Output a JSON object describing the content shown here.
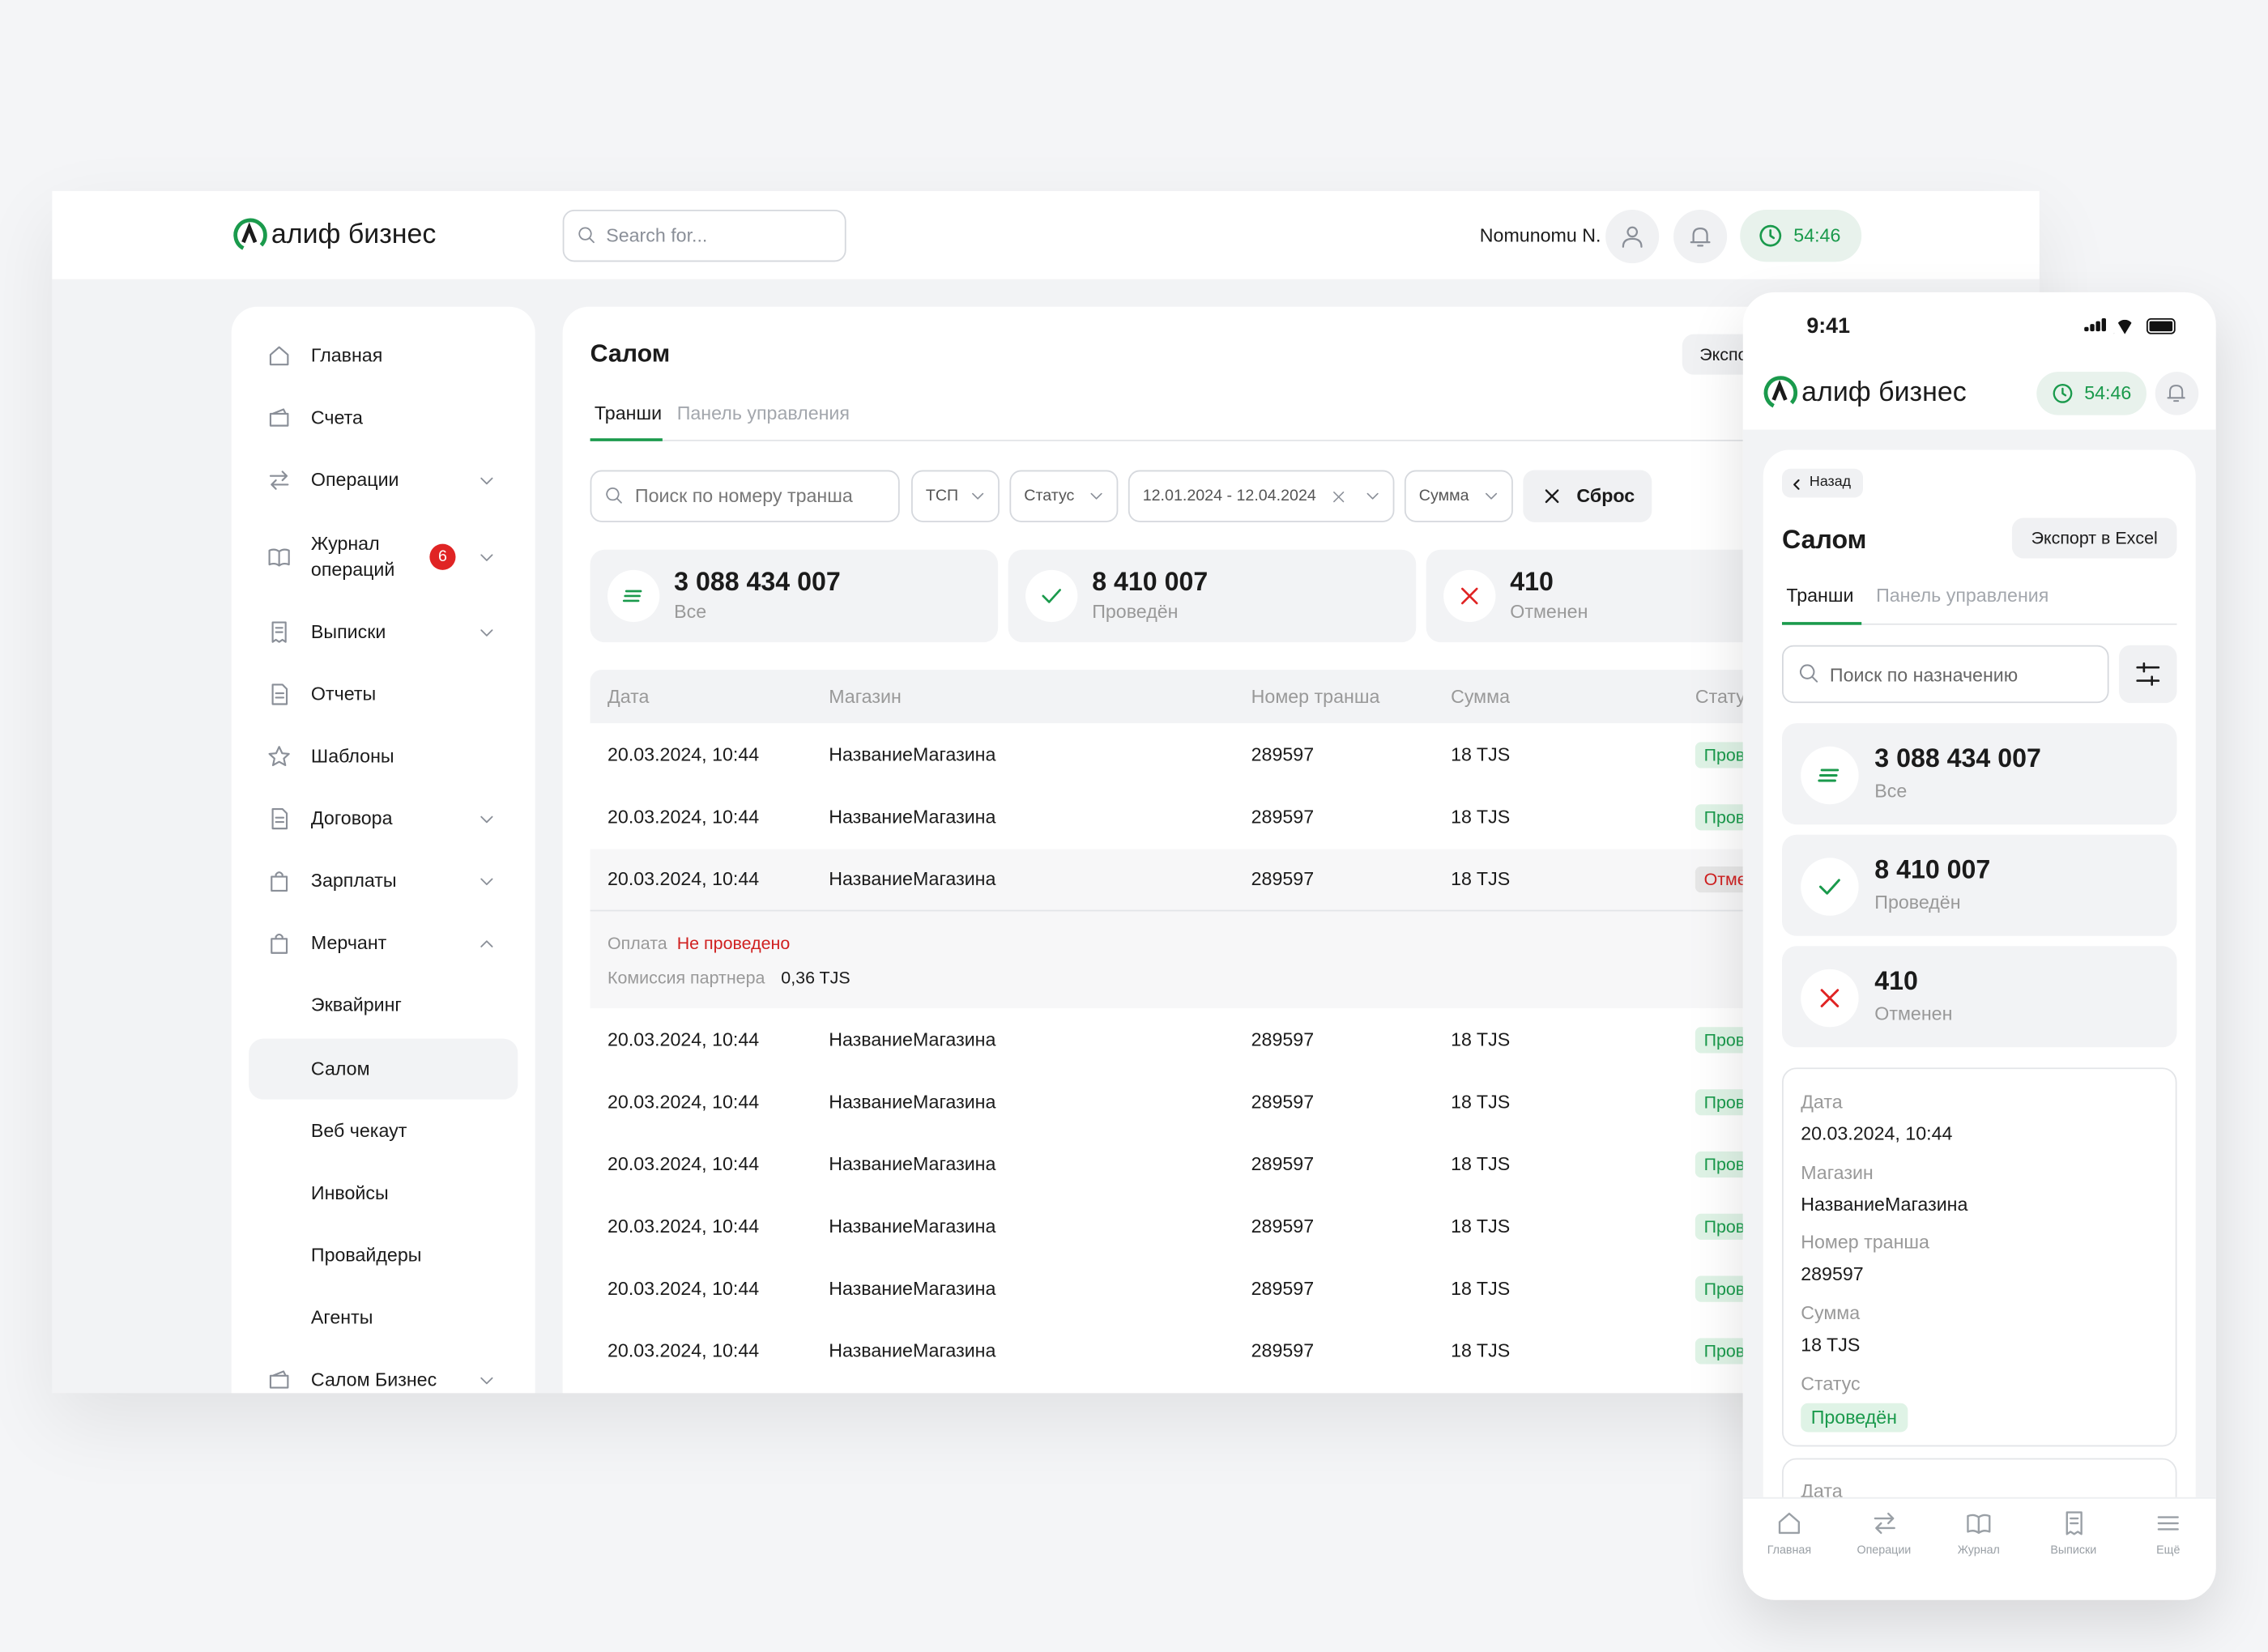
{
  "header": {
    "logo": "алиф бизнес",
    "search_placeholder": "Search for...",
    "user": "Nomunomu N.",
    "timer": "54:46"
  },
  "sidebar": {
    "items": [
      {
        "label": "Главная"
      },
      {
        "label": "Счета"
      },
      {
        "label": "Операции"
      },
      {
        "label": "Журнал операций",
        "badge": "6"
      },
      {
        "label": "Выписки"
      },
      {
        "label": "Отчеты"
      },
      {
        "label": "Шаблоны"
      },
      {
        "label": "Договора"
      },
      {
        "label": "Зарплаты"
      },
      {
        "label": "Мерчант"
      },
      {
        "label": "Эквайринг"
      },
      {
        "label": "Салом"
      },
      {
        "label": "Веб чекаут"
      },
      {
        "label": "Инвойсы"
      },
      {
        "label": "Провайдеры"
      },
      {
        "label": "Агенты"
      },
      {
        "label": "Салом Бизнес"
      }
    ]
  },
  "main": {
    "title": "Салом",
    "export_button": "Экспорт в Excel",
    "tabs": [
      "Транши",
      "Панель управления"
    ],
    "filters": {
      "search_placeholder": "Поиск по номеру транша",
      "shop": "ТСП",
      "status": "Статус",
      "date_range": "12.01.2024 - 12.04.2024",
      "amount": "Сумма",
      "reset": "Сброс"
    },
    "summary": [
      {
        "value": "3 088 434 007",
        "label": "Все"
      },
      {
        "value": "8 410 007",
        "label": "Проведён"
      },
      {
        "value": "410",
        "label": "Отменен"
      }
    ],
    "table": {
      "columns": [
        "Дата",
        "Магазин",
        "Номер транша",
        "Сумма",
        "Статус"
      ],
      "rows": [
        [
          "20.03.2024, 10:44",
          "НазваниеМагазина",
          "289597",
          "18 TJS",
          "Проведён"
        ],
        [
          "20.03.2024, 10:44",
          "НазваниеМагазина",
          "289597",
          "18 TJS",
          "Проведён"
        ],
        [
          "20.03.2024, 10:44",
          "НазваниеМагазина",
          "289597",
          "18 TJS",
          "Отменен"
        ],
        [
          "20.03.2024, 10:44",
          "НазваниеМагазина",
          "289597",
          "18 TJS",
          "Проведён"
        ],
        [
          "20.03.2024, 10:44",
          "НазваниеМагазина",
          "289597",
          "18 TJS",
          "Проведён"
        ],
        [
          "20.03.2024, 10:44",
          "НазваниеМагазина",
          "289597",
          "18 TJS",
          "Проведён"
        ],
        [
          "20.03.2024, 10:44",
          "НазваниеМагазина",
          "289597",
          "18 TJS",
          "Проведён"
        ],
        [
          "20.03.2024, 10:44",
          "НазваниеМагазина",
          "289597",
          "18 TJS",
          "Проведён"
        ],
        [
          "20.03.2024, 10:44",
          "НазваниеМагазина",
          "289597",
          "18 TJS",
          "Проведён"
        ]
      ],
      "expanded": {
        "payment_label": "Оплата",
        "payment_status": "Не проведено",
        "commission_label": "Комиссия партнера",
        "commission_value": "0,36 TJS"
      }
    }
  },
  "mobile": {
    "time": "9:41",
    "logo": "алиф бизнес",
    "timer": "54:46",
    "back": "Назад",
    "title": "Салом",
    "export_button": "Экспорт в Excel",
    "tabs": [
      "Транши",
      "Панель управления"
    ],
    "search_placeholder": "Поиск по назначению",
    "summary": [
      {
        "value": "3 088 434 007",
        "label": "Все"
      },
      {
        "value": "8 410 007",
        "label": "Проведён"
      },
      {
        "value": "410",
        "label": "Отменен"
      }
    ],
    "detail": [
      {
        "label": "Дата",
        "value": "20.03.2024, 10:44"
      },
      {
        "label": "Магазин",
        "value": "НазваниеМагазина"
      },
      {
        "label": "Номер транша",
        "value": "289597"
      },
      {
        "label": "Сумма",
        "value": "18 TJS"
      },
      {
        "label": "Статус",
        "value": "Проведён"
      }
    ],
    "next_card_label": "Дата",
    "nav": [
      "Главная",
      "Операции",
      "Журнал",
      "Выписки",
      "Ещё"
    ]
  }
}
